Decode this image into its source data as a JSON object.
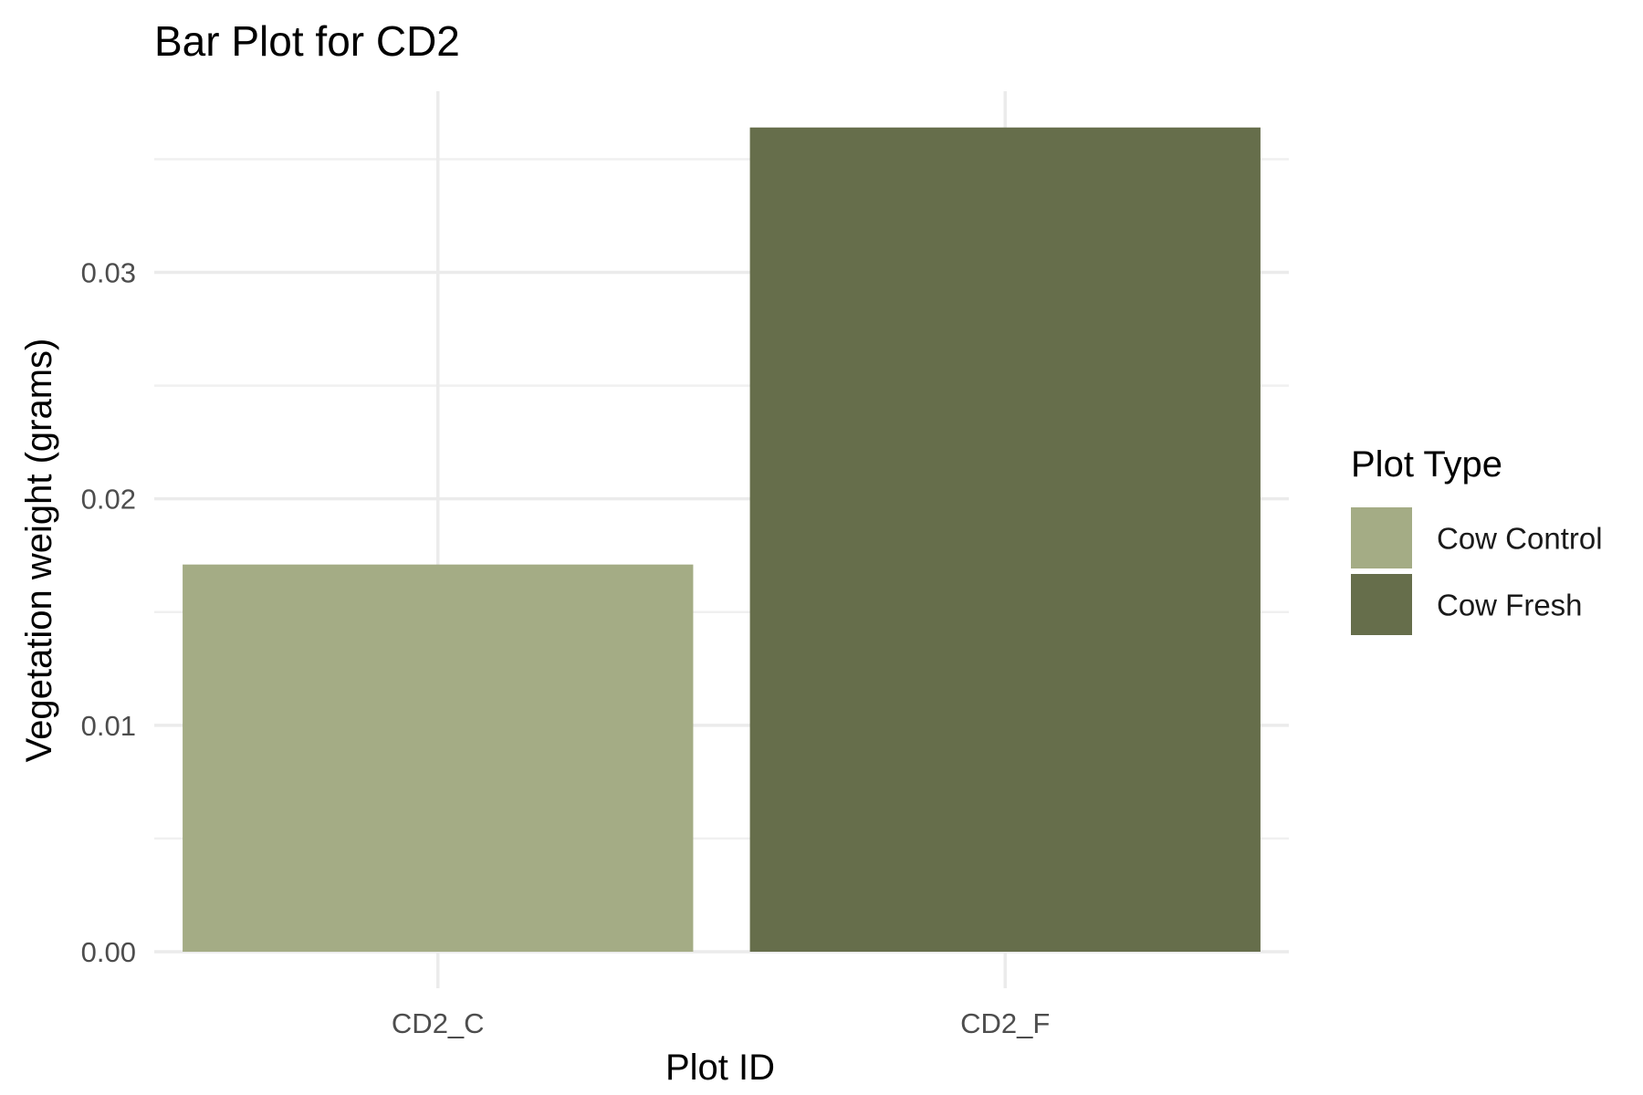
{
  "chart_data": {
    "type": "bar",
    "title": "Bar Plot for CD2",
    "xlabel": "Plot ID",
    "ylabel": "Vegetation weight (grams)",
    "categories": [
      "CD2_C",
      "CD2_F"
    ],
    "values": [
      0.0171,
      0.0364
    ],
    "bar_groups": [
      "Cow Control",
      "Cow Fresh"
    ],
    "ylim": [
      0,
      0.038
    ],
    "yticks": [
      0,
      0.01,
      0.02,
      0.03
    ],
    "ytick_labels": [
      "0.00",
      "0.01",
      "0.02",
      "0.03"
    ],
    "grid": true,
    "legend": {
      "title": "Plot Type",
      "placement": "right",
      "entries": [
        {
          "label": "Cow Control",
          "color": "#a4ac85"
        },
        {
          "label": "Cow Fresh",
          "color": "#666e4b"
        }
      ]
    }
  }
}
